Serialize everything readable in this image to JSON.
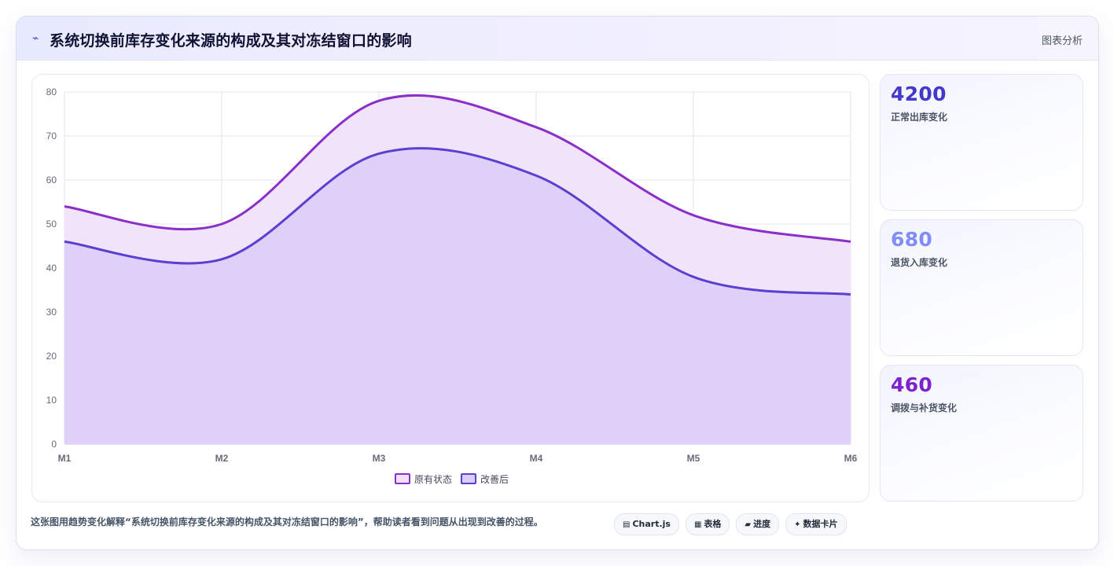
{
  "header": {
    "icon": "trend-line-icon",
    "title": "系统切换前库存变化来源的构成及其对冻结窗口的影响",
    "tag": "图表分析"
  },
  "stats": [
    {
      "value": "4200",
      "label": "正常出库变化",
      "color": "#4338ca"
    },
    {
      "value": "680",
      "label": "退货入库变化",
      "color": "#818cf8"
    },
    {
      "value": "460",
      "label": "调拨与补货变化",
      "color": "#7e22ce"
    }
  ],
  "caption": "这张图用趋势变化解释“系统切换前库存变化来源的构成及其对冻结窗口的影响”，帮助读者看到问题从出现到改善的过程。",
  "chips": [
    {
      "icon": "chart-icon",
      "glyph": "▤",
      "label": "Chart.js"
    },
    {
      "icon": "table-icon",
      "glyph": "▦",
      "label": "表格"
    },
    {
      "icon": "progress-icon",
      "glyph": "▰",
      "label": "进度"
    },
    {
      "icon": "sparkle-icon",
      "glyph": "✦",
      "label": "数据卡片"
    }
  ],
  "chart_data": {
    "type": "area",
    "categories": [
      "M1",
      "M2",
      "M3",
      "M4",
      "M5",
      "M6"
    ],
    "ylim": [
      0,
      80
    ],
    "yticks": [
      0,
      10,
      20,
      30,
      40,
      50,
      60,
      70,
      80
    ],
    "grid": true,
    "legend_position": "bottom",
    "series": [
      {
        "name": "原有状态",
        "values": [
          54,
          50,
          78,
          72,
          52,
          46
        ],
        "color": "#8b2fc9",
        "fill": "#efe1fa"
      },
      {
        "name": "改善后",
        "values": [
          46,
          42,
          66,
          61,
          38,
          34
        ],
        "color": "#5b3fd1",
        "fill": "#dccdf8"
      }
    ]
  }
}
